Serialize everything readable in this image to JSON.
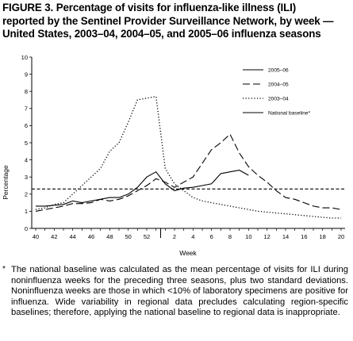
{
  "figure": {
    "title_lines": [
      "FIGURE 3. Percentage of visits for influenza-like illness (ILI)",
      "reported by the Sentinel Provider Surveillance Network, by week —",
      "United States, 2003–04, 2004–05, and 2005–06 influenza seasons"
    ],
    "footnote_marker": "*",
    "footnote": "The national baseline was calculated as the mean percentage of visits for ILI during noninfluenza weeks for the preceding three seasons, plus two standard deviations. Noninfluenza weeks are those in which <10% of laboratory specimens are positive for influenza. Wide variability in regional data precludes calculating region-specific baselines; therefore, applying the national baseline to regional data is inappropriate."
  },
  "chart_data": {
    "type": "line",
    "xlabel": "Week",
    "ylabel": "Percentage",
    "ylim": [
      0,
      10
    ],
    "yticks": [
      0,
      1,
      2,
      3,
      4,
      5,
      6,
      7,
      8,
      9,
      10
    ],
    "categories": [
      40,
      41,
      42,
      43,
      44,
      45,
      46,
      47,
      48,
      49,
      50,
      51,
      52,
      53,
      1,
      2,
      3,
      4,
      5,
      6,
      7,
      8,
      9,
      10,
      11,
      12,
      13,
      14,
      15,
      16,
      17,
      18,
      19,
      20
    ],
    "x_tick_labels": [
      "40",
      "42",
      "44",
      "46",
      "48",
      "50",
      "52",
      "2",
      "4",
      "6",
      "8",
      "10",
      "12",
      "14",
      "16",
      "18",
      "20"
    ],
    "year_boundary_after": "53",
    "legend_position": "top-right",
    "series": [
      {
        "name": "2005–06",
        "style": "solid",
        "values": [
          1.3,
          1.3,
          1.35,
          1.4,
          1.6,
          1.5,
          1.6,
          1.7,
          1.8,
          1.8,
          2.0,
          2.4,
          3.0,
          3.3,
          2.6,
          2.2,
          2.35,
          2.4,
          2.5,
          2.6,
          3.2,
          3.3,
          3.4,
          3.1,
          null,
          null,
          null,
          null,
          null,
          null,
          null,
          null,
          null,
          null
        ]
      },
      {
        "name": "2004–05",
        "style": "dashed",
        "values": [
          1.0,
          1.1,
          1.2,
          1.3,
          1.45,
          1.45,
          1.5,
          1.7,
          1.6,
          1.7,
          1.9,
          2.2,
          2.5,
          2.9,
          2.7,
          2.4,
          2.7,
          3.0,
          3.8,
          4.6,
          5.0,
          5.5,
          4.4,
          3.6,
          3.1,
          2.7,
          2.2,
          1.8,
          1.7,
          1.5,
          1.3,
          1.2,
          1.2,
          1.1
        ]
      },
      {
        "name": "2003–04",
        "style": "dotted",
        "values": [
          1.1,
          1.2,
          1.4,
          1.5,
          2.0,
          2.5,
          3.0,
          3.5,
          4.5,
          5.0,
          6.2,
          7.5,
          7.6,
          7.7,
          3.5,
          2.6,
          2.2,
          1.8,
          1.6,
          1.5,
          1.4,
          1.3,
          1.2,
          1.1,
          1.0,
          0.95,
          0.9,
          0.85,
          0.8,
          0.75,
          0.7,
          0.65,
          0.6,
          0.6
        ]
      },
      {
        "name": "National baseline*",
        "style": "short-dash",
        "constant": 2.3
      }
    ]
  }
}
